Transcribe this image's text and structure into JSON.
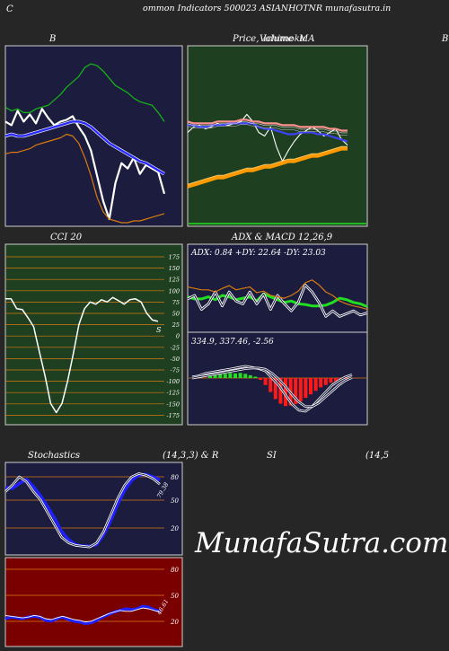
{
  "header": {
    "left_letter": "C",
    "title": "ommon  Indicators 500023 ASIANHOTNR munafasutra.in"
  },
  "panels": {
    "bollinger": {
      "title": "B",
      "right_letter": "B"
    },
    "price": {
      "title": "Price,",
      "overlay1": "Volume",
      "overlay2": "Ichimoku",
      "ma": "MA"
    },
    "cci": {
      "title": "CCI 20",
      "end_label": "S",
      "ticks": [
        "175",
        "150",
        "125",
        "100",
        "75",
        "50",
        "25",
        "0",
        "-25",
        "-50",
        "-75",
        "-100",
        "-125",
        "-150",
        "-175"
      ]
    },
    "adx": {
      "title": "ADX  & MACD 12,26,9",
      "readout": "ADX: 0.84   +DY: 22.64  -DY: 23.03"
    },
    "macd": {
      "readout": "334.9,  337.46,  -2.56"
    },
    "stochastics": {
      "title": "Stochastics",
      "params": "(14,3,3) & R",
      "ticks": [
        "80",
        "50",
        "20"
      ],
      "end_value": "79.38"
    },
    "rsi": {
      "title": "SI",
      "params": "(14,5",
      "ticks": [
        "80",
        "50",
        "20"
      ],
      "end_value": "46.61"
    }
  },
  "watermark": "MunafaSutra.com",
  "colors": {
    "navy_bg": "#1c1c3e",
    "green_bg": "#1f4020",
    "red_bg": "#7a0000",
    "orange": "#d87a10",
    "blue": "#2020ff",
    "lime": "#22dd22"
  },
  "chart_data": [
    {
      "type": "line",
      "name": "bollinger",
      "series": [
        {
          "name": "price",
          "color": "#ffffff",
          "values": [
            58,
            56,
            64,
            58,
            62,
            57,
            65,
            60,
            56,
            58,
            59,
            61,
            55,
            50,
            42,
            28,
            14,
            4,
            24,
            35,
            32,
            38,
            29,
            34,
            32,
            30,
            18
          ]
        },
        {
          "name": "upper",
          "color": "#16b016",
          "values": [
            66,
            64,
            65,
            63,
            63,
            65,
            66,
            67,
            70,
            73,
            77,
            80,
            83,
            88,
            90,
            89,
            86,
            82,
            78,
            76,
            74,
            71,
            69,
            68,
            67,
            63,
            58
          ]
        },
        {
          "name": "middle",
          "color": "#2828ff",
          "values": [
            50,
            51,
            50,
            50,
            51,
            52,
            53,
            54,
            55,
            56,
            57,
            58,
            58,
            57,
            55,
            52,
            49,
            46,
            44,
            42,
            40,
            38,
            36,
            35,
            33,
            31,
            29
          ]
        },
        {
          "name": "lower",
          "color": "#d87a10",
          "values": [
            40,
            41,
            41,
            42,
            43,
            45,
            46,
            47,
            48,
            49,
            51,
            50,
            46,
            38,
            28,
            16,
            8,
            4,
            3,
            2,
            2,
            3,
            3,
            4,
            5,
            6,
            7
          ]
        }
      ]
    },
    {
      "type": "line",
      "name": "price_ma",
      "ylim": [
        0,
        100
      ],
      "series": [
        {
          "name": "price",
          "color": "#ffffff",
          "values": [
            52,
            55,
            56,
            54,
            55,
            57,
            56,
            56,
            57,
            58,
            62,
            58,
            52,
            50,
            55,
            44,
            36,
            42,
            47,
            51,
            53,
            55,
            53,
            50,
            52,
            54,
            48,
            45
          ]
        },
        {
          "name": "ma_fast",
          "color": "#4040ff",
          "values": [
            56,
            56,
            55,
            55,
            56,
            56,
            56,
            57,
            57,
            57,
            57,
            57,
            55,
            54,
            54,
            53,
            52,
            51,
            51,
            52,
            52,
            52,
            51,
            51,
            50,
            49,
            48,
            47
          ]
        },
        {
          "name": "ma_slow",
          "color": "#ff9090",
          "values": [
            58,
            57,
            57,
            57,
            57,
            58,
            58,
            58,
            58,
            59,
            59,
            58,
            58,
            57,
            57,
            57,
            56,
            56,
            56,
            55,
            55,
            55,
            55,
            55,
            54,
            54,
            53,
            53
          ]
        },
        {
          "name": "volume_line",
          "color": "#ff9900",
          "values": [
            22,
            23,
            24,
            25,
            26,
            27,
            27,
            28,
            29,
            30,
            31,
            31,
            32,
            33,
            33,
            34,
            35,
            36,
            36,
            37,
            38,
            39,
            39,
            40,
            41,
            42,
            43,
            43
          ]
        }
      ]
    },
    {
      "type": "line",
      "name": "cci20",
      "ylim": [
        -175,
        175
      ],
      "series": [
        {
          "name": "cci",
          "color": "#ffffff",
          "values": [
            82,
            82,
            60,
            58,
            40,
            20,
            -35,
            -88,
            -150,
            -170,
            -150,
            -100,
            -40,
            25,
            60,
            75,
            70,
            80,
            75,
            85,
            78,
            70,
            80,
            82,
            75,
            50,
            35,
            32
          ]
        }
      ]
    },
    {
      "type": "line",
      "name": "adx",
      "series": [
        {
          "name": "adx",
          "color": "#22dd22",
          "values": [
            48,
            45,
            45,
            48,
            44,
            50,
            48,
            44,
            46,
            48,
            42,
            52,
            48,
            44,
            40,
            42,
            38,
            37,
            35,
            35,
            36,
            40,
            46,
            44,
            40,
            38,
            34
          ]
        },
        {
          "name": "plus_di",
          "color": "#ffffff",
          "values": [
            45,
            50,
            30,
            38,
            55,
            35,
            55,
            42,
            38,
            55,
            38,
            52,
            30,
            50,
            38,
            28,
            40,
            65,
            55,
            40,
            20,
            28,
            20,
            24,
            28,
            22,
            25
          ]
        },
        {
          "name": "minus_di",
          "color": "#d87a10",
          "values": [
            62,
            60,
            58,
            58,
            55,
            60,
            64,
            58,
            60,
            62,
            54,
            56,
            50,
            48,
            46,
            50,
            56,
            68,
            72,
            65,
            55,
            50,
            42,
            38,
            35,
            33,
            30
          ]
        }
      ]
    },
    {
      "type": "line",
      "name": "macd",
      "ylim": [
        -400,
        100
      ],
      "series": [
        {
          "name": "macd",
          "color": "#ffffff",
          "values": [
            -50,
            -40,
            -20,
            -10,
            0,
            10,
            20,
            30,
            40,
            30,
            20,
            0,
            -60,
            -120,
            -200,
            -280,
            -330,
            -340,
            -300,
            -240,
            -180,
            -120,
            -80,
            -50,
            -30
          ]
        },
        {
          "name": "signal",
          "color": "#ffffff",
          "values": [
            -60,
            -50,
            -40,
            -30,
            -20,
            -10,
            0,
            10,
            20,
            25,
            25,
            15,
            -20,
            -70,
            -130,
            -200,
            -260,
            -300,
            -300,
            -270,
            -220,
            -170,
            -120,
            -80,
            -55
          ]
        }
      ],
      "histogram": [
        8,
        12,
        16,
        18,
        22,
        20,
        22,
        18,
        12,
        6,
        -8,
        -30,
        -60,
        -90,
        -110,
        -120,
        -118,
        -112,
        -100,
        -85,
        -70,
        -55,
        -40,
        -30,
        -20,
        -14,
        -8,
        -4
      ]
    },
    {
      "type": "line",
      "name": "stochastics",
      "ylim": [
        0,
        100
      ],
      "series": [
        {
          "name": "k",
          "color": "#ffffff",
          "values": [
            70,
            78,
            88,
            82,
            70,
            60,
            45,
            30,
            15,
            8,
            5,
            4,
            3,
            8,
            22,
            42,
            62,
            78,
            88,
            92,
            90,
            86,
            79
          ]
        },
        {
          "name": "d",
          "color": "#2020ff",
          "values": [
            75,
            74,
            80,
            85,
            76,
            65,
            52,
            38,
            22,
            12,
            6,
            4,
            4,
            6,
            18,
            35,
            55,
            72,
            84,
            90,
            91,
            88,
            84
          ]
        }
      ]
    },
    {
      "type": "line",
      "name": "rsi",
      "ylim": [
        0,
        100
      ],
      "series": [
        {
          "name": "rsi",
          "color": "#2020ff",
          "values": [
            38,
            40,
            39,
            38,
            40,
            41,
            40,
            36,
            35,
            38,
            40,
            37,
            35,
            34,
            32,
            33,
            36,
            40,
            43,
            46,
            48,
            50,
            49,
            50,
            53,
            52,
            49,
            47
          ]
        },
        {
          "name": "mfi",
          "color": "#ffffff",
          "values": [
            42,
            41,
            40,
            39,
            40,
            42,
            41,
            38,
            37,
            39,
            41,
            39,
            37,
            36,
            34,
            35,
            38,
            41,
            44,
            46,
            48,
            47,
            47,
            49,
            51,
            50,
            48,
            46
          ]
        }
      ]
    }
  ]
}
